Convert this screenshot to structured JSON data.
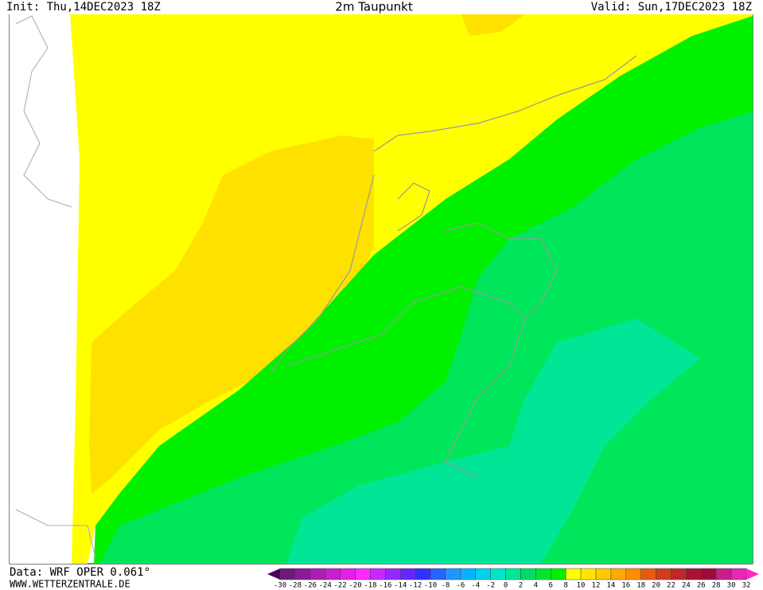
{
  "header": {
    "init": "Init: Thu,14DEC2023 18Z",
    "title": "2m Taupunkt",
    "valid": "Valid: Sun,17DEC2023 18Z"
  },
  "footer": {
    "data": "Data: WRF  OPER  0.061°",
    "site": "WWW.WETTERZENTRALE.DE"
  },
  "colorbar": {
    "labels": [
      "-30",
      "-28",
      "-26",
      "-24",
      "-22",
      "-20",
      "-18",
      "-16",
      "-14",
      "-12",
      "-10",
      "-8",
      "-6",
      "-4",
      "-2",
      "0",
      "2",
      "4",
      "6",
      "8",
      "10",
      "12",
      "14",
      "16",
      "18",
      "20",
      "22",
      "24",
      "26",
      "28",
      "30",
      "32"
    ],
    "colors": [
      "#6e1a78",
      "#8a1a96",
      "#aa1eb4",
      "#c81ed2",
      "#e61ee6",
      "#ff28ff",
      "#c828ff",
      "#9628ff",
      "#6428ff",
      "#3232ff",
      "#2864ff",
      "#1e96ff",
      "#00b4ff",
      "#00d2f0",
      "#00e6c8",
      "#00e696",
      "#00dc64",
      "#00e632",
      "#00f000",
      "#ffff00",
      "#ffe600",
      "#ffc800",
      "#ffaa00",
      "#ff8c00",
      "#e65a14",
      "#d23c1e",
      "#be2828",
      "#aa1432",
      "#a00a3c",
      "#c81e8c",
      "#e628b4"
    ],
    "low_color": "#50005a",
    "high_color": "#ff28c8"
  }
}
